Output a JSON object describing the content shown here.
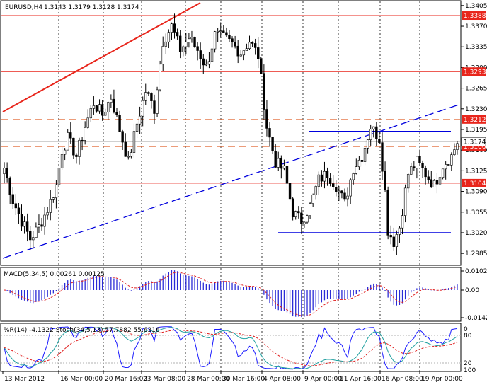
{
  "header": {
    "symbol": "EURUSD,H4",
    "ohlc": "1.3143 1.3179 1.3128 1.3174"
  },
  "colors": {
    "background": "#ffffff",
    "frame": "#000000",
    "candle": "#000000",
    "resistance_red": "#e8251b",
    "fib_orange": "#e0622a",
    "blue": "#0000dd",
    "macd_hist": "#2b2bd6",
    "macd_signal": "#e02020",
    "wpr": "#1a1aff",
    "stoch_main": "#20a0a0",
    "stoch_signal": "#e02020",
    "label_bg": "#e8251b",
    "label_text": "#ffffff"
  },
  "chart_data": [
    {
      "type": "candlestick",
      "title": "EURUSD,H4",
      "price_axis_ticks": [
        "1.3405",
        "1.3370",
        "1.3335",
        "1.3300",
        "1.3265",
        "1.3230",
        "1.3195",
        "1.3160",
        "1.3125",
        "1.3090",
        "1.3055",
        "1.3020",
        "1.2985"
      ],
      "ylim": [
        1.2966,
        1.3412
      ],
      "x_labels": [
        "13 Mar 2012",
        "16 Mar 00:00",
        "20 Mar 16:00",
        "23 Mar 08:00",
        "28 Mar 00:00",
        "30 Mar 16:00",
        "4 Apr 08:00",
        "9 Apr 00:00",
        "11 Apr 16:00",
        "16 Apr 08:00",
        "19 Apr 00:00"
      ],
      "n_bars": 158,
      "close_path": [
        [
          0,
          1.313
        ],
        [
          3,
          1.3075
        ],
        [
          6,
          1.304
        ],
        [
          9,
          1.301
        ],
        [
          12,
          1.303
        ],
        [
          15,
          1.306
        ],
        [
          18,
          1.31
        ],
        [
          20,
          1.316
        ],
        [
          22,
          1.318
        ],
        [
          25,
          1.315
        ],
        [
          28,
          1.32
        ],
        [
          31,
          1.324
        ],
        [
          34,
          1.322
        ],
        [
          37,
          1.325
        ],
        [
          40,
          1.3195
        ],
        [
          43,
          1.314
        ],
        [
          46,
          1.3205
        ],
        [
          49,
          1.326
        ],
        [
          52,
          1.323
        ],
        [
          55,
          1.3345
        ],
        [
          58,
          1.337
        ],
        [
          61,
          1.333
        ],
        [
          64,
          1.335
        ],
        [
          67,
          1.333
        ],
        [
          70,
          1.33
        ],
        [
          73,
          1.3355
        ],
        [
          76,
          1.335
        ],
        [
          79,
          1.334
        ],
        [
          82,
          1.3325
        ],
        [
          85,
          1.3345
        ],
        [
          88,
          1.332
        ],
        [
          91,
          1.32
        ],
        [
          94,
          1.314
        ],
        [
          97,
          1.3125
        ],
        [
          100,
          1.3055
        ],
        [
          103,
          1.304
        ],
        [
          106,
          1.3065
        ],
        [
          109,
          1.311
        ],
        [
          112,
          1.312
        ],
        [
          115,
          1.31
        ],
        [
          118,
          1.307
        ],
        [
          121,
          1.313
        ],
        [
          124,
          1.315
        ],
        [
          127,
          1.32
        ],
        [
          130,
          1.318
        ],
        [
          132,
          1.309
        ],
        [
          133,
          1.3025
        ],
        [
          135,
          1.3005
        ],
        [
          137,
          1.303
        ],
        [
          140,
          1.312
        ],
        [
          143,
          1.314
        ],
        [
          146,
          1.312
        ],
        [
          149,
          1.31
        ],
        [
          152,
          1.3135
        ],
        [
          155,
          1.315
        ],
        [
          157,
          1.3174
        ]
      ],
      "horizontal_levels": [
        {
          "price": 1.3388,
          "label": "1.3388",
          "style": "solid",
          "color_key": "resistance_red"
        },
        {
          "price": 1.3293,
          "label": "1.3293",
          "style": "solid",
          "color_key": "resistance_red"
        },
        {
          "price": 1.3212,
          "label": "1.3212",
          "style": "dashed",
          "color_key": "fib_orange"
        },
        {
          "price": 1.3166,
          "label": "1.3166",
          "style": "dashed",
          "color_key": "fib_orange"
        },
        {
          "price": 1.3104,
          "label": "1.3104",
          "style": "solid",
          "color_key": "resistance_red"
        }
      ],
      "current_price_label": "1.3174",
      "current_price": 1.3174
    },
    {
      "type": "histogram",
      "title": "MACD(5,34,5) 0.00261 0.00125",
      "axis_ticks": [
        "0.01021",
        "0.00",
        "-0.01429"
      ],
      "ylim": [
        -0.01429,
        0.01021
      ]
    },
    {
      "type": "line",
      "title": "%R(14) -4.1322  Stoch(34,5,13) 57.7882 55.6316",
      "axis_ticks": [
        "0",
        "20",
        "80",
        "100"
      ],
      "ylim": [
        0,
        100
      ]
    }
  ]
}
